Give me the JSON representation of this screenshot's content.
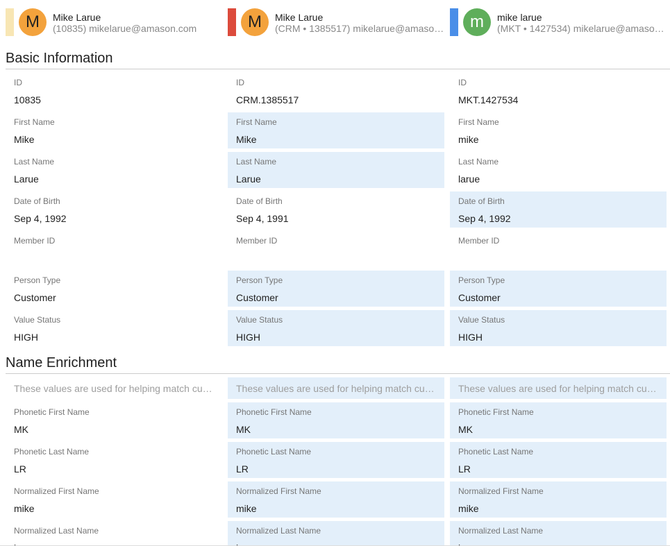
{
  "profiles": [
    {
      "initial": "M",
      "name": "Mike Larue",
      "detail": "(10835) mikelarue@amason.com",
      "bar_color": "#f8e6b4",
      "avatar_color": "#f3a23c"
    },
    {
      "initial": "M",
      "name": "Mike Larue",
      "detail": "(CRM • 1385517) mikelarue@amaso…",
      "bar_color": "#dc4b3c",
      "avatar_color": "#f3a23c"
    },
    {
      "initial": "m",
      "name": "mike larue",
      "detail": "(MKT • 1427534) mikelarue@amaso…",
      "bar_color": "#4a8ee8",
      "avatar_color": "#5fae5b"
    }
  ],
  "sections": [
    {
      "title": "Basic Information",
      "rows": [
        {
          "label": "ID",
          "values": [
            "10835",
            "CRM.1385517",
            "MKT.1427534"
          ],
          "highlight": [
            false,
            false,
            false
          ]
        },
        {
          "label": "First Name",
          "values": [
            "Mike",
            "Mike",
            "mike"
          ],
          "highlight": [
            false,
            true,
            false
          ]
        },
        {
          "label": "Last Name",
          "values": [
            "Larue",
            "Larue",
            "larue"
          ],
          "highlight": [
            false,
            true,
            false
          ]
        },
        {
          "label": "Date of Birth",
          "values": [
            "Sep 4, 1992",
            "Sep 4, 1991",
            "Sep 4, 1992"
          ],
          "highlight": [
            false,
            false,
            true
          ]
        },
        {
          "label": "Member ID",
          "values": [
            null,
            null,
            null
          ],
          "highlight": [
            false,
            false,
            false
          ]
        },
        {
          "label": "Person Type",
          "values": [
            "Customer",
            "Customer",
            "Customer"
          ],
          "highlight": [
            false,
            true,
            true
          ]
        },
        {
          "label": "Value Status",
          "values": [
            "HIGH",
            "HIGH",
            "HIGH"
          ],
          "highlight": [
            false,
            true,
            true
          ]
        }
      ]
    },
    {
      "title": "Name Enrichment",
      "note": "These values are used for helping match cu…",
      "note_highlight": [
        false,
        true,
        true
      ],
      "rows": [
        {
          "label": "Phonetic First Name",
          "values": [
            "MK",
            "MK",
            "MK"
          ],
          "highlight": [
            false,
            true,
            true
          ]
        },
        {
          "label": "Phonetic Last Name",
          "values": [
            "LR",
            "LR",
            "LR"
          ],
          "highlight": [
            false,
            true,
            true
          ]
        },
        {
          "label": "Normalized First Name",
          "values": [
            "mike",
            "mike",
            "mike"
          ],
          "highlight": [
            false,
            true,
            true
          ]
        },
        {
          "label": "Normalized Last Name",
          "values": [
            "larue",
            "larue",
            "larue"
          ],
          "highlight": [
            false,
            true,
            true
          ]
        }
      ]
    }
  ]
}
